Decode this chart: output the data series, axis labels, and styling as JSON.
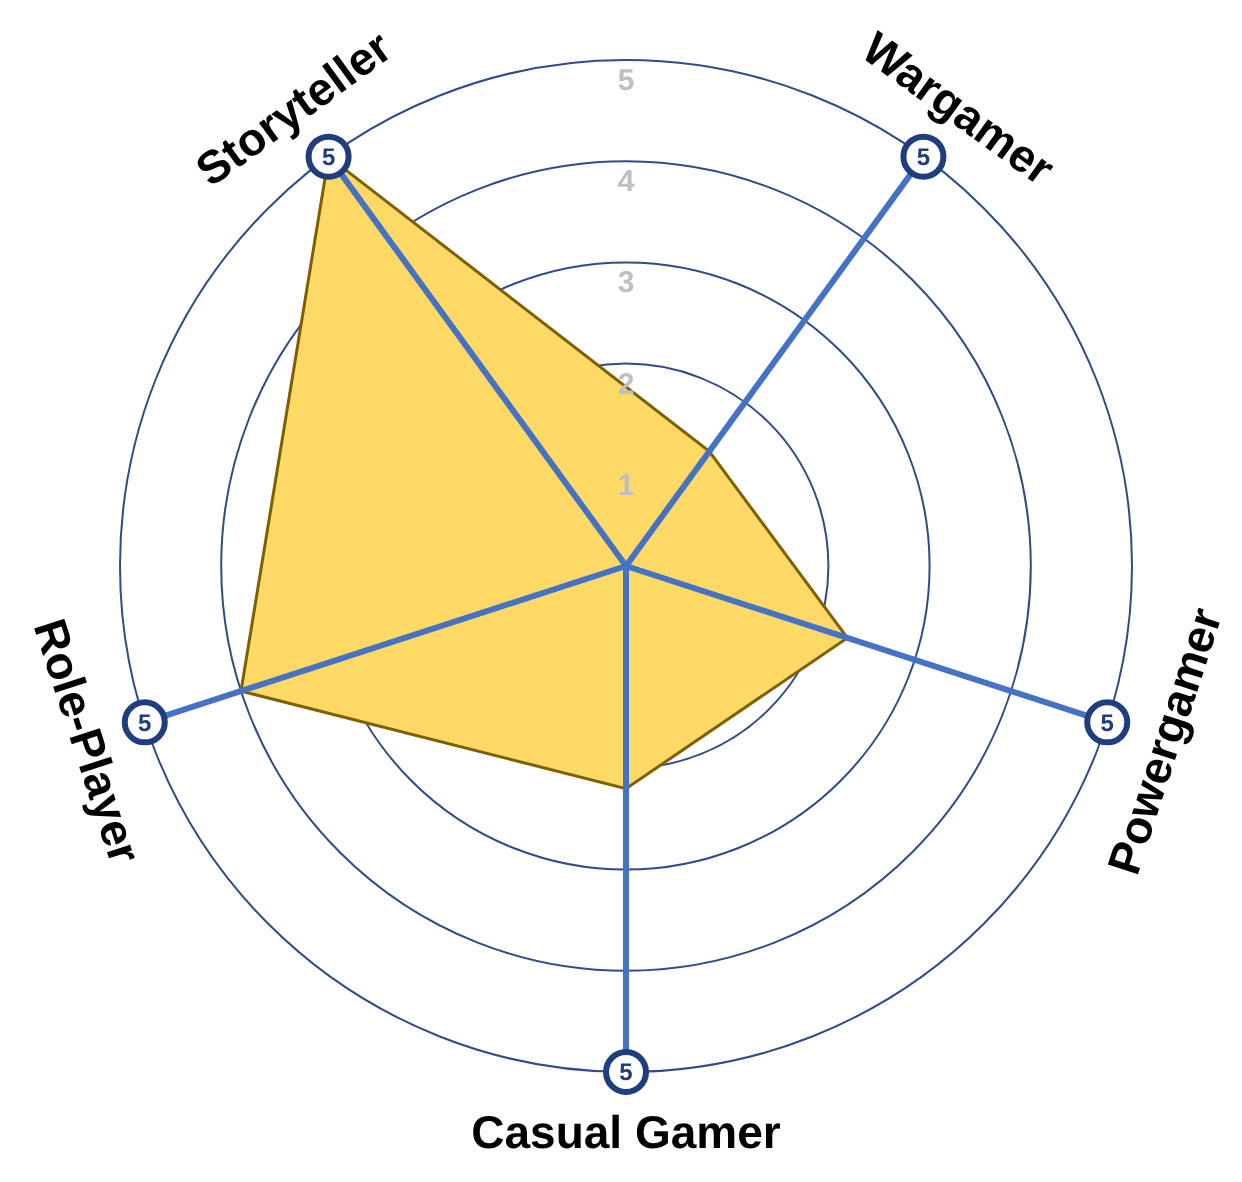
{
  "chart_data": {
    "type": "radar",
    "categories": [
      "Wargamer",
      "Powergamer",
      "Casual Gamer",
      "Role-Player",
      "Storyteller"
    ],
    "series": [
      {
        "color": "#ffd966",
        "values": [
          1.4,
          2.3,
          2.2,
          4,
          5
        ]
      }
    ],
    "ylim": [
      0,
      5
    ],
    "yticks": [
      1,
      2,
      3,
      4,
      5
    ],
    "grid": true,
    "annotations": [
      "5",
      "5",
      "5",
      "5",
      "5"
    ]
  }
}
